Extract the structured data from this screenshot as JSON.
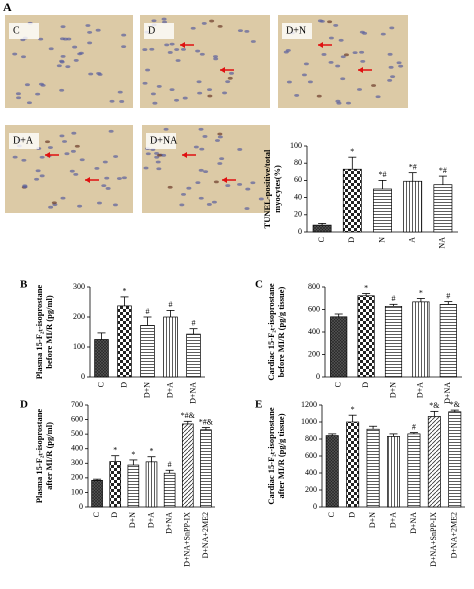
{
  "panel_a": {
    "letter": "A",
    "images": [
      "C",
      "D",
      "D+N",
      "D+A",
      "D+NA"
    ]
  },
  "chart_data": [
    {
      "type": "bar",
      "ylabel": [
        "TUNEL-positive/total",
        "myocytes(%)"
      ],
      "categories": [
        "C",
        "D",
        "N",
        "A",
        "NA"
      ],
      "values": [
        8,
        73,
        50,
        59,
        55
      ],
      "errors": [
        2,
        14,
        10,
        10,
        10
      ],
      "annotations": [
        null,
        "*",
        "*#",
        "*#",
        "*#"
      ],
      "patterns": [
        "crosshatch",
        "checker",
        "hlines",
        "vlines",
        "hlines"
      ],
      "ylim": [
        0,
        100
      ],
      "yticks": [
        0,
        20,
        40,
        60,
        80,
        100
      ]
    },
    {
      "type": "bar",
      "panel": "B",
      "ylabel": [
        "Plasma 15-F₂ₜ-isoprostane",
        "before MI/R (pg/ml)"
      ],
      "categories": [
        "C",
        "D",
        "D+N",
        "D+A",
        "D+NA"
      ],
      "values": [
        125,
        237,
        172,
        200,
        143
      ],
      "errors": [
        22,
        30,
        28,
        22,
        18
      ],
      "annotations": [
        null,
        "*",
        "#",
        "#",
        "#"
      ],
      "patterns": [
        "crosshatch",
        "checker",
        "hlines",
        "vlines",
        "hlines"
      ],
      "ylim": [
        0,
        300
      ],
      "yticks": [
        0,
        100,
        200,
        300
      ]
    },
    {
      "type": "bar",
      "panel": "C",
      "ylabel": [
        "Cardiac 15-F₂ₜ-isoprostane",
        "before MI/R (pg/g tissue)"
      ],
      "categories": [
        "C",
        "D",
        "D+N",
        "D+A",
        "D+NA"
      ],
      "values": [
        535,
        722,
        628,
        668,
        645
      ],
      "errors": [
        25,
        20,
        18,
        30,
        25
      ],
      "annotations": [
        null,
        "*",
        "#",
        "*",
        "#"
      ],
      "patterns": [
        "crosshatch",
        "checker",
        "hlines",
        "vlines",
        "hlines"
      ],
      "ylim": [
        0,
        800
      ],
      "yticks": [
        0,
        200,
        400,
        600,
        800
      ]
    },
    {
      "type": "bar",
      "panel": "D",
      "ylabel": [
        "Plasma 15-F₂ₜ-isoprostane",
        "after MI/R (pg/ml)"
      ],
      "categories": [
        "C",
        "D",
        "D+N",
        "D+A",
        "D+NA",
        "D+NA+SnPP-IX",
        "D+NA+2ME2"
      ],
      "values": [
        183,
        312,
        288,
        310,
        232,
        570,
        530
      ],
      "errors": [
        8,
        40,
        35,
        35,
        20,
        18,
        15
      ],
      "annotations": [
        null,
        "*",
        "*",
        "*",
        "#",
        "*#&",
        "*#&"
      ],
      "patterns": [
        "crosshatch",
        "checker",
        "hlines",
        "vlines",
        "hlines",
        "diag",
        "hlines"
      ],
      "ylim": [
        0,
        700
      ],
      "yticks": [
        0,
        100,
        200,
        300,
        400,
        500,
        600,
        700
      ]
    },
    {
      "type": "bar",
      "panel": "E",
      "ylabel": [
        "Cardiac 15-F₂ₜ-isoprostane",
        "after MI/R (pg/g tissue)"
      ],
      "categories": [
        "C",
        "D",
        "D+N",
        "D+A",
        "D+NA",
        "D+NA+SnPP-IX",
        "D+NA+2ME2"
      ],
      "values": [
        840,
        1000,
        915,
        830,
        860,
        1065,
        1120
      ],
      "errors": [
        20,
        80,
        35,
        30,
        15,
        60,
        20
      ],
      "annotations": [
        null,
        "*",
        null,
        null,
        "#",
        "*&",
        "*&"
      ],
      "patterns": [
        "crosshatch",
        "checker",
        "hlines",
        "vlines",
        "hlines",
        "diag",
        "hlines"
      ],
      "ylim": [
        0,
        1200
      ],
      "yticks": [
        0,
        200,
        400,
        600,
        800,
        1000,
        1200
      ]
    }
  ]
}
